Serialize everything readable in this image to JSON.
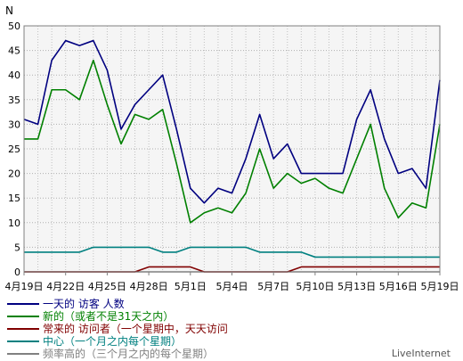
{
  "chart_data": {
    "type": "line",
    "ylabel": "N",
    "ylim": [
      0,
      50
    ],
    "yticks": [
      0,
      5,
      10,
      15,
      20,
      25,
      30,
      35,
      40,
      45,
      50
    ],
    "grid": true,
    "legend_position": "bottom-left",
    "x": [
      "4月19日",
      "4月20日",
      "4月21日",
      "4月22日",
      "4月23日",
      "4月24日",
      "4月25日",
      "4月26日",
      "4月27日",
      "4月28日",
      "4月29日",
      "4月30日",
      "5月1日",
      "5月2日",
      "5月3日",
      "5月4日",
      "5月5日",
      "5月6日",
      "5月7日",
      "5月8日",
      "5月9日",
      "5月10日",
      "5月11日",
      "5月12日",
      "5月13日",
      "5月14日",
      "5月15日",
      "5月16日",
      "5月17日",
      "5月18日",
      "5月19日"
    ],
    "xticks": [
      "4月19日",
      "4月22日",
      "4月25日",
      "4月28日",
      "5月1日",
      "5月4日",
      "5月7日",
      "5月10日",
      "5月13日",
      "5月16日",
      "5月19日"
    ],
    "series": [
      {
        "name": "一天的 访客 人数",
        "color": "#000080",
        "values": [
          31,
          30,
          43,
          47,
          46,
          47,
          41,
          29,
          34,
          37,
          40,
          29,
          17,
          14,
          17,
          16,
          23,
          32,
          23,
          26,
          20,
          20,
          20,
          20,
          31,
          37,
          27,
          20,
          21,
          17,
          39
        ]
      },
      {
        "name": "新的（或者不是31天之内）",
        "color": "#008000",
        "values": [
          27,
          27,
          37,
          37,
          35,
          43,
          34,
          26,
          32,
          31,
          33,
          22,
          10,
          12,
          13,
          12,
          16,
          25,
          17,
          20,
          18,
          19,
          17,
          16,
          23,
          30,
          17,
          11,
          14,
          13,
          30
        ]
      },
      {
        "name": "常来的 访问者（一个星期中，天天访问",
        "color": "#800000",
        "values": [
          0,
          0,
          0,
          0,
          0,
          0,
          0,
          0,
          0,
          1,
          1,
          1,
          1,
          0,
          0,
          0,
          0,
          0,
          0,
          0,
          1,
          1,
          1,
          1,
          1,
          1,
          1,
          1,
          1,
          1,
          1
        ]
      },
      {
        "name": "中心（一个月之内每个星期）",
        "color": "#008080",
        "values": [
          4,
          4,
          4,
          4,
          4,
          5,
          5,
          5,
          5,
          5,
          4,
          4,
          5,
          5,
          5,
          5,
          5,
          4,
          4,
          4,
          4,
          3,
          3,
          3,
          3,
          3,
          3,
          3,
          3,
          3,
          3
        ]
      },
      {
        "name": "频率高的（三个月之内的每个星期）",
        "color": "#808080",
        "values": [
          0,
          0,
          0,
          0,
          0,
          0,
          0,
          0,
          0,
          0,
          0,
          0,
          0,
          0,
          0,
          0,
          0,
          0,
          0,
          0,
          0,
          0,
          0,
          0,
          0,
          0,
          0,
          0,
          0,
          0,
          0
        ]
      }
    ]
  },
  "watermark": "LiveInternet"
}
